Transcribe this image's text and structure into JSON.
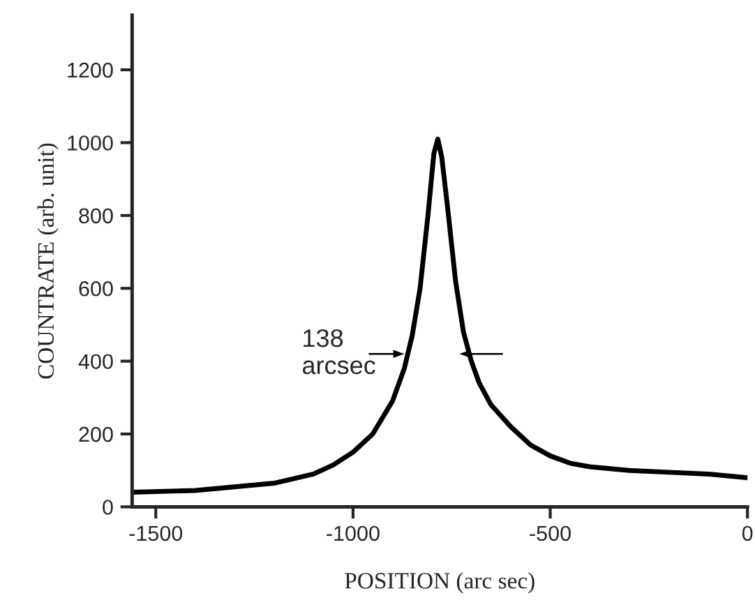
{
  "chart_data": {
    "type": "line",
    "xlabel": "POSITION (arc sec)",
    "ylabel": "COUNTRATE (arb. unit)",
    "x": [
      -1560,
      -1400,
      -1300,
      -1200,
      -1100,
      -1050,
      -1000,
      -950,
      -900,
      -870,
      -850,
      -830,
      -810,
      -795,
      -785,
      -775,
      -760,
      -740,
      -720,
      -700,
      -680,
      -650,
      -600,
      -550,
      -500,
      -450,
      -400,
      -300,
      -200,
      -100,
      0
    ],
    "series": [
      {
        "color": "#000000",
        "values": [
          40,
          45,
          55,
          65,
          90,
          115,
          150,
          200,
          290,
          380,
          470,
          600,
          800,
          970,
          1010,
          960,
          820,
          620,
          480,
          400,
          340,
          280,
          220,
          170,
          140,
          120,
          110,
          100,
          95,
          90,
          80
        ]
      }
    ],
    "xlim": [
      -1560,
      0
    ],
    "ylim": [
      0,
      1350
    ],
    "xticks": [
      -1500,
      -1000,
      -500,
      0
    ],
    "yticks": [
      0,
      200,
      400,
      600,
      800,
      1000,
      1200
    ],
    "annotations": [
      {
        "text": "138\narcsec",
        "x": -870,
        "y": 420
      }
    ],
    "grid": false,
    "legend": false,
    "line_style": "solid",
    "marker": "none"
  }
}
